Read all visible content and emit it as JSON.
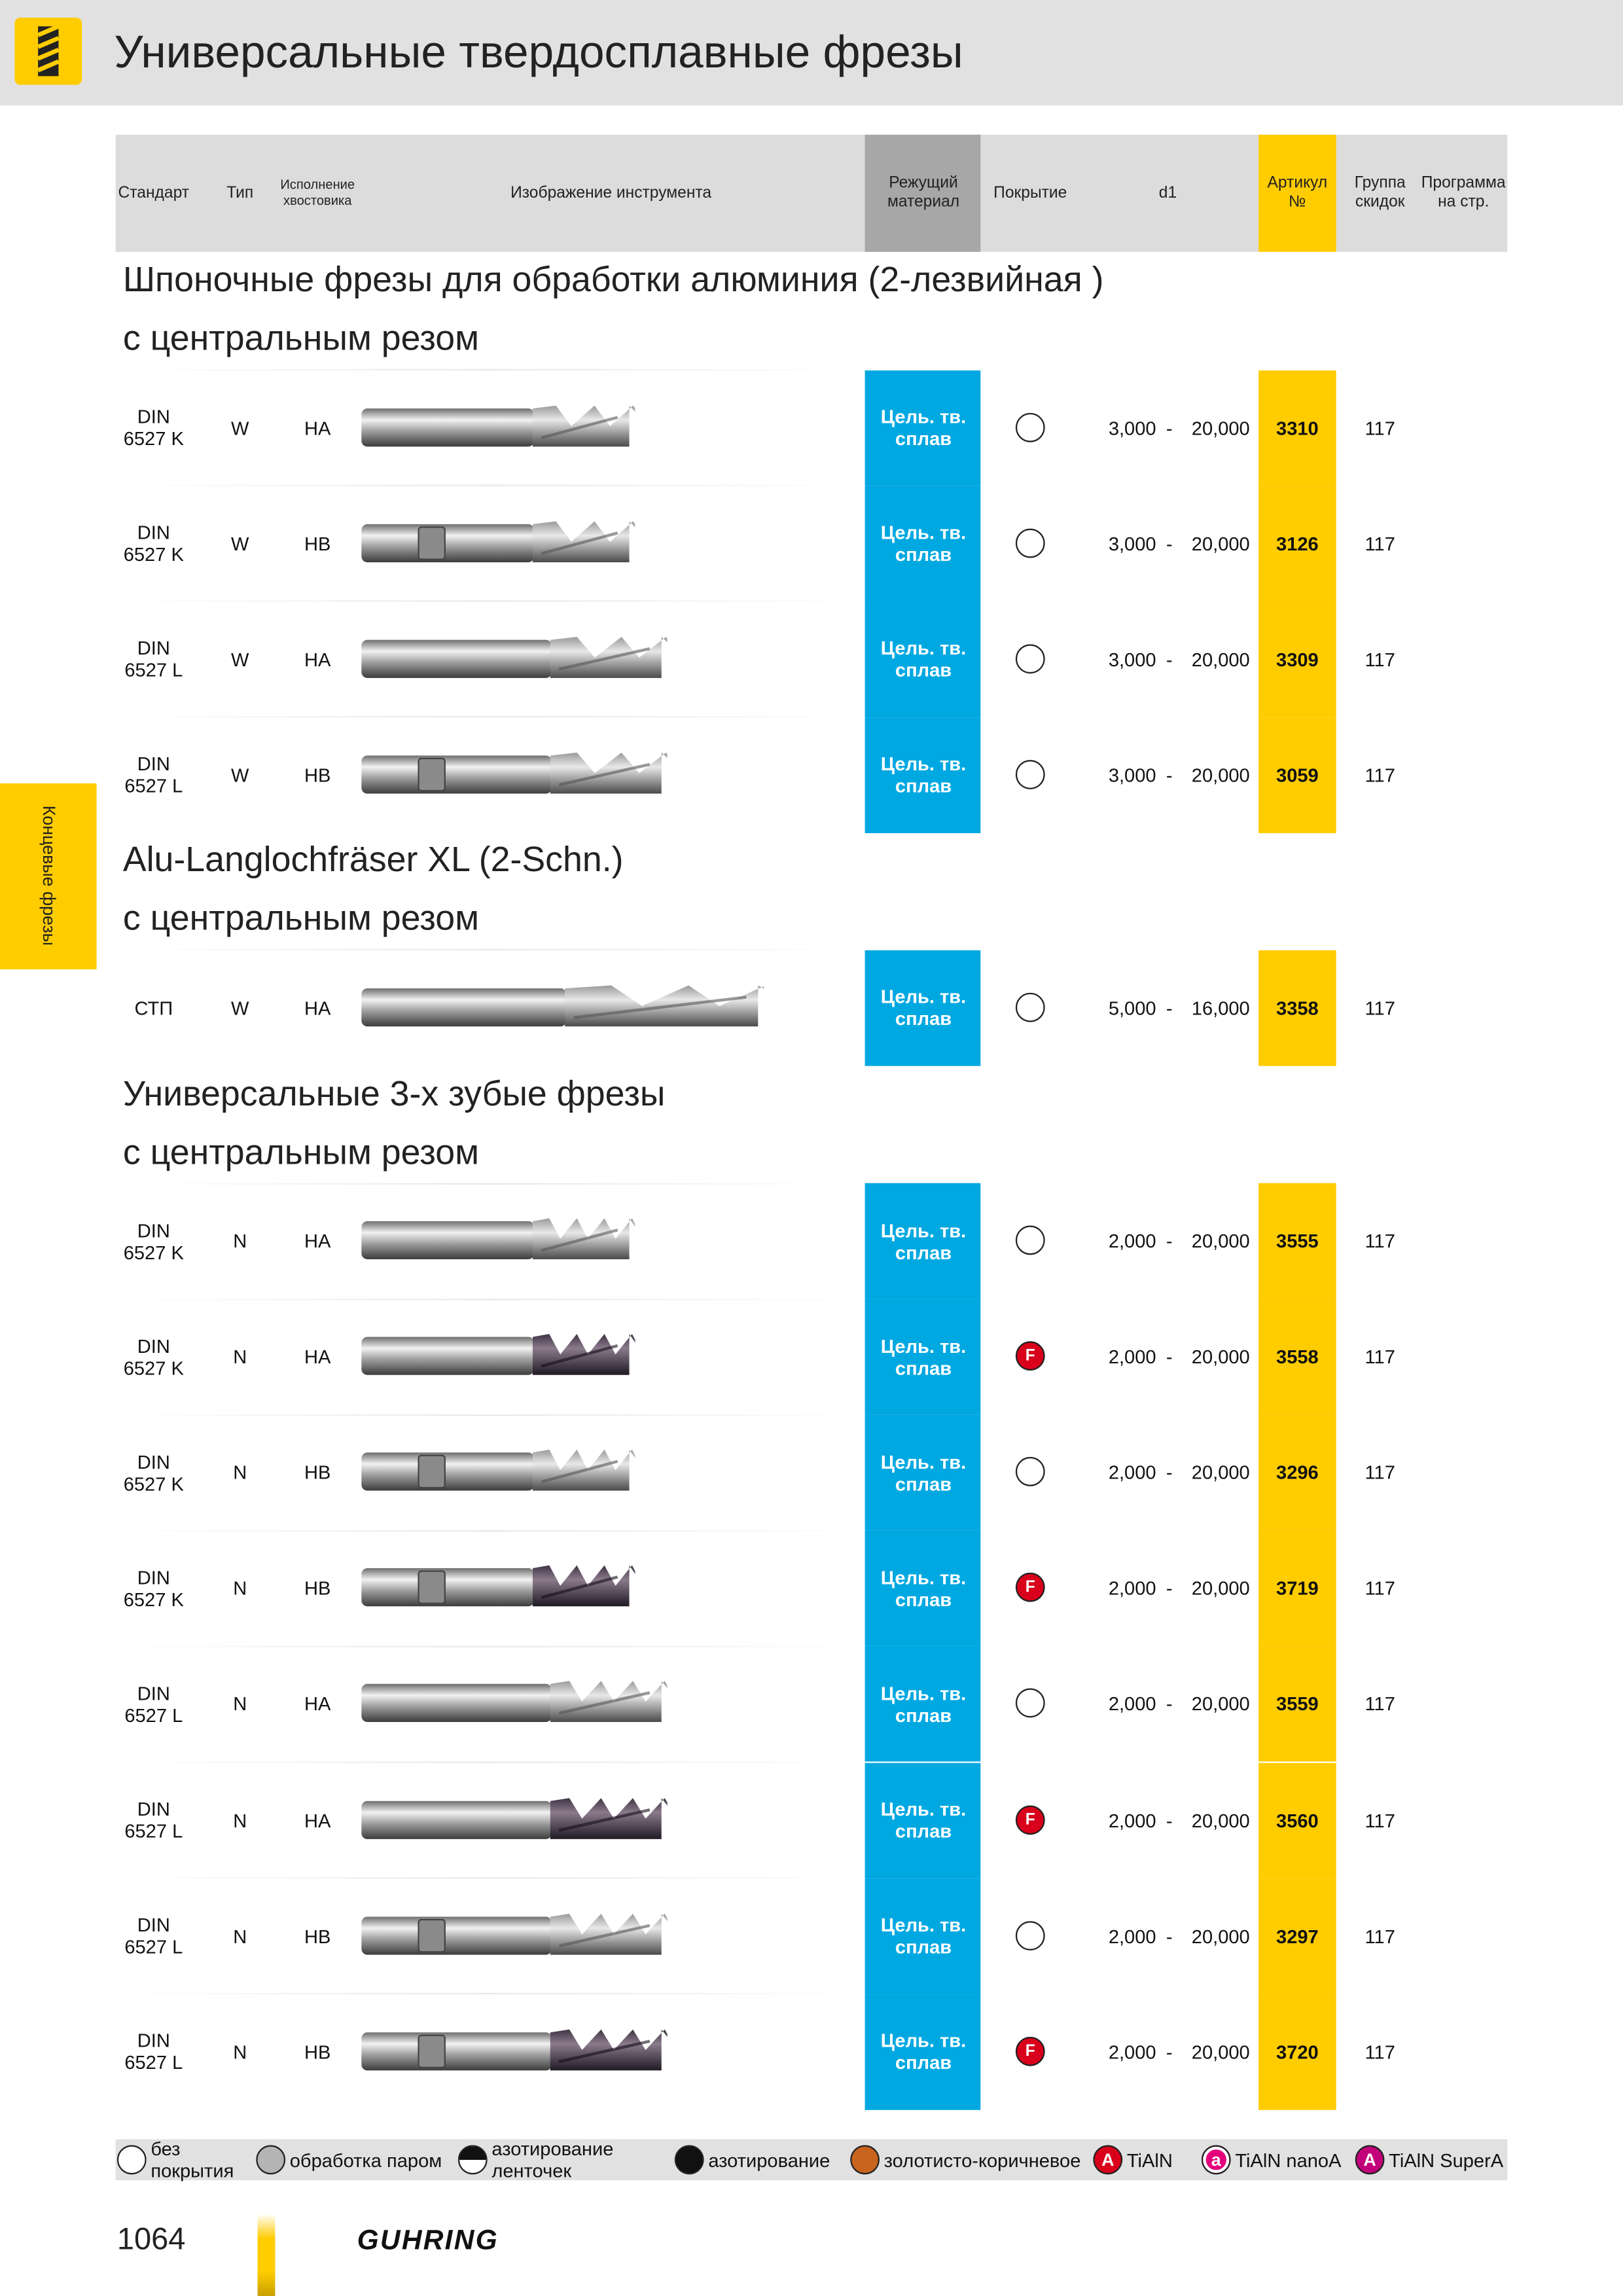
{
  "header": {
    "title": "Универсальные твердосплавные фрезы"
  },
  "side_tab": "Концевые фрезы",
  "table": {
    "columns": [
      "Стандарт",
      "Тип",
      "Исполнение хвостовика",
      "Изображение инструмента",
      "Режущий материал",
      "Покрытие",
      "d1",
      "Артикул №",
      "Группа скидок",
      "Программа на стр."
    ],
    "range_separator": "-",
    "sections": [
      {
        "title": [
          "Шпоночные фрезы для обработки алюминия (2-лезвийная )",
          "с центральным резом"
        ],
        "rows": [
          {
            "standard": "DIN 6527 K",
            "type": "W",
            "shank": "HA",
            "material": "Цель. тв. сплав",
            "d1_min": "3,000",
            "d1_max": "20,000",
            "article": "3310",
            "page": "117"
          },
          {
            "standard": "DIN 6527 K",
            "type": "W",
            "shank": "HB",
            "material": "Цель. тв. сплав",
            "d1_min": "3,000",
            "d1_max": "20,000",
            "article": "3126",
            "page": "117"
          },
          {
            "standard": "DIN 6527 L",
            "type": "W",
            "shank": "HA",
            "material": "Цель. тв. сплав",
            "d1_min": "3,000",
            "d1_max": "20,000",
            "article": "3309",
            "page": "117"
          },
          {
            "standard": "DIN 6527 L",
            "type": "W",
            "shank": "HB",
            "material": "Цель. тв. сплав",
            "d1_min": "3,000",
            "d1_max": "20,000",
            "article": "3059",
            "page": "117"
          }
        ]
      },
      {
        "title": [
          "Alu-Langlochfräser XL (2-Schn.)",
          "с центральным резом"
        ],
        "rows": [
          {
            "standard": "СТП",
            "type": "W",
            "shank": "HA",
            "material": "Цель. тв. сплав",
            "d1_min": "5,000",
            "d1_max": "16,000",
            "article": "3358",
            "page": "117"
          }
        ]
      },
      {
        "title": [
          "Универсальные 3-х зубые фрезы",
          "с центральным резом"
        ],
        "rows": [
          {
            "standard": "DIN 6527 K",
            "type": "N",
            "shank": "HA",
            "material": "Цель. тв. сплав",
            "d1_min": "2,000",
            "d1_max": "20,000",
            "article": "3555",
            "page": "117"
          },
          {
            "standard": "DIN 6527 K",
            "type": "N",
            "shank": "HA",
            "material": "Цель. тв. сплав",
            "coating": "F",
            "d1_min": "2,000",
            "d1_max": "20,000",
            "article": "3558",
            "page": "117"
          },
          {
            "standard": "DIN 6527 K",
            "type": "N",
            "shank": "HB",
            "material": "Цель. тв. сплав",
            "d1_min": "2,000",
            "d1_max": "20,000",
            "article": "3296",
            "page": "117"
          },
          {
            "standard": "DIN 6527 K",
            "type": "N",
            "shank": "HB",
            "material": "Цель. тв. сплав",
            "coating": "F",
            "d1_min": "2,000",
            "d1_max": "20,000",
            "article": "3719",
            "page": "117"
          },
          {
            "standard": "DIN 6527 L",
            "type": "N",
            "shank": "HA",
            "material": "Цель. тв. сплав",
            "d1_min": "2,000",
            "d1_max": "20,000",
            "article": "3559",
            "page": "117"
          },
          {
            "standard": "DIN 6527 L",
            "type": "N",
            "shank": "HA",
            "material": "Цель. тв. сплав",
            "coating": "F",
            "d1_min": "2,000",
            "d1_max": "20,000",
            "article": "3560",
            "page": "117"
          },
          {
            "standard": "DIN 6527 L",
            "type": "N",
            "shank": "HB",
            "material": "Цель. тв. сплав",
            "d1_min": "2,000",
            "d1_max": "20,000",
            "article": "3297",
            "page": "117"
          },
          {
            "standard": "DIN 6527 L",
            "type": "N",
            "shank": "HB",
            "material": "Цель. тв. сплав",
            "coating": "F",
            "d1_min": "2,000",
            "d1_max": "20,000",
            "article": "3720",
            "page": "117"
          }
        ]
      }
    ]
  },
  "legend": [
    {
      "label": "без покрытия",
      "icon": "white"
    },
    {
      "label": "обработка паром",
      "icon": "gray"
    },
    {
      "label": "азотирование ленточек",
      "icon": "half"
    },
    {
      "label": "азотирование",
      "icon": "black"
    },
    {
      "label": "золотисто-коричневое",
      "icon": "brown"
    },
    {
      "label": "TiAlN",
      "icon": "red",
      "letter": "A"
    },
    {
      "label": "TiAlN nanoA",
      "icon": "pink",
      "letter": "a"
    },
    {
      "label": "TiAlN SuperA",
      "icon": "magenta",
      "letter": "A"
    }
  ],
  "footer": {
    "page": "1064",
    "brand": "GUHRING"
  }
}
